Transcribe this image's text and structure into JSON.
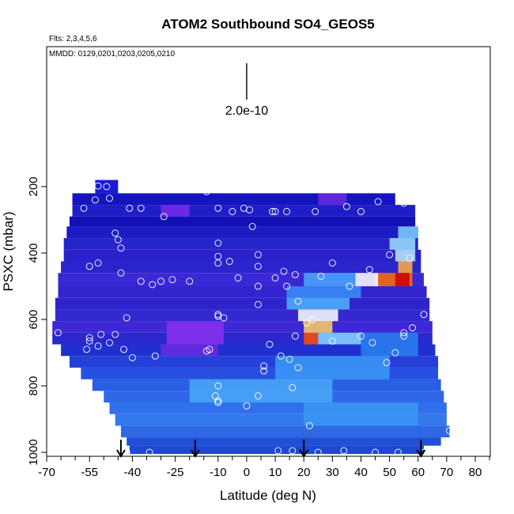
{
  "chart_data": {
    "type": "heatmap",
    "title": "ATOM2 Southbound SO4_GEOS5",
    "flights_note": "Flts: 2,3,4,5,6",
    "dates_note": "MMDD: 0129,0201,0203,0205,0210",
    "scale_label": "2.0e-10",
    "xlabel": "Latitude (deg N)",
    "ylabel": "PSXC (mbar)",
    "xlim": [
      -70,
      85
    ],
    "ylim": [
      1000,
      0
    ],
    "y_reversed": true,
    "x_tick_values": [
      -70,
      -55,
      -40,
      -25,
      -10,
      0,
      10,
      20,
      30,
      40,
      50,
      60,
      70,
      80
    ],
    "x_tick_labels": [
      "-70",
      "-55",
      "-40",
      "-25",
      "-10",
      "0",
      "10",
      "20",
      "30",
      "40",
      "50",
      "60",
      "70",
      "80"
    ],
    "x_minor_ticks": [
      -65,
      -60,
      -50,
      -45,
      -35,
      -30,
      -20,
      -15,
      -5,
      5,
      15,
      25,
      35,
      45,
      55,
      65,
      75,
      85
    ],
    "y_tick_values": [
      200,
      400,
      600,
      800,
      1000
    ],
    "y_tick_labels": [
      "200",
      "400",
      "600",
      "800",
      "1000"
    ],
    "colormap": [
      "#00007a",
      "#1a1ac8",
      "#5a28dc",
      "#9b30f0",
      "#1e64f0",
      "#3ca0f8",
      "#8fd8ff",
      "#ffffff",
      "#ffe680",
      "#ff9900",
      "#e81e00",
      "#b40000"
    ],
    "layers": [
      {
        "p_top": 180,
        "p_bot": 220,
        "x_start": -53,
        "x_end": -45,
        "color": "#1a1ad2"
      },
      {
        "p_top": 220,
        "p_bot": 255,
        "x_start": -61,
        "x_end": 52,
        "color": "#1414c0"
      },
      {
        "p_top": 255,
        "p_bot": 290,
        "x_start": -61,
        "x_end": 59,
        "color": "#1e1ec8"
      },
      {
        "p_top": 290,
        "p_bot": 320,
        "x_start": -62,
        "x_end": 59,
        "color": "#1010b4"
      },
      {
        "p_top": 320,
        "p_bot": 355,
        "x_start": -63,
        "x_end": 60,
        "color": "#1c1cc4"
      },
      {
        "p_top": 355,
        "p_bot": 390,
        "x_start": -64,
        "x_end": 60,
        "color": "#2424c8"
      },
      {
        "p_top": 390,
        "p_bot": 425,
        "x_start": -64,
        "x_end": 61,
        "color": "#2a20cc"
      },
      {
        "p_top": 425,
        "p_bot": 460,
        "x_start": -65,
        "x_end": 61,
        "color": "#2a24cc"
      },
      {
        "p_top": 460,
        "p_bot": 500,
        "x_start": -66,
        "x_end": 62,
        "color": "#3a28d4"
      },
      {
        "p_top": 500,
        "p_bot": 535,
        "x_start": -66,
        "x_end": 63,
        "color": "#3424d0"
      },
      {
        "p_top": 535,
        "p_bot": 570,
        "x_start": -67,
        "x_end": 64,
        "color": "#2e24cc"
      },
      {
        "p_top": 570,
        "p_bot": 605,
        "x_start": -67,
        "x_end": 64,
        "color": "#3428d0"
      },
      {
        "p_top": 605,
        "p_bot": 640,
        "x_start": -68,
        "x_end": 65,
        "color": "#3c28d4"
      },
      {
        "p_top": 640,
        "p_bot": 675,
        "x_start": -68,
        "x_end": 65,
        "color": "#2a28cc"
      },
      {
        "p_top": 675,
        "p_bot": 710,
        "x_start": -65,
        "x_end": 66,
        "color": "#2030d0"
      },
      {
        "p_top": 710,
        "p_bot": 745,
        "x_start": -62,
        "x_end": 67,
        "color": "#2440d8"
      },
      {
        "p_top": 745,
        "p_bot": 780,
        "x_start": -58,
        "x_end": 67,
        "color": "#2850e0"
      },
      {
        "p_top": 780,
        "p_bot": 815,
        "x_start": -54,
        "x_end": 68,
        "color": "#2a5ee4"
      },
      {
        "p_top": 815,
        "p_bot": 850,
        "x_start": -50,
        "x_end": 69,
        "color": "#2e68e8"
      },
      {
        "p_top": 850,
        "p_bot": 885,
        "x_start": -48,
        "x_end": 70,
        "color": "#3070ec"
      },
      {
        "p_top": 885,
        "p_bot": 920,
        "x_start": -46,
        "x_end": 70,
        "color": "#3478ee"
      },
      {
        "p_top": 920,
        "p_bot": 955,
        "x_start": -44,
        "x_end": 71,
        "color": "#2e68e4"
      },
      {
        "p_top": 955,
        "p_bot": 980,
        "x_start": -42,
        "x_end": 68,
        "color": "#2050d8"
      },
      {
        "p_top": 980,
        "p_bot": 1005,
        "x_start": -41,
        "x_end": 62,
        "color": "#1e48d0"
      }
    ],
    "hotspots": [
      {
        "p_top": 320,
        "p_bot": 355,
        "x_start": 53,
        "x_end": 60,
        "color": "#7fd0ff"
      },
      {
        "p_top": 355,
        "p_bot": 390,
        "x_start": 50,
        "x_end": 59,
        "color": "#9fe0ff"
      },
      {
        "p_top": 390,
        "p_bot": 425,
        "x_start": 52,
        "x_end": 59,
        "color": "#bfeaff"
      },
      {
        "p_top": 425,
        "p_bot": 460,
        "x_start": 53,
        "x_end": 58,
        "color": "#ffb040"
      },
      {
        "p_top": 460,
        "p_bot": 500,
        "x_start": 45,
        "x_end": 58,
        "color": "#ff7000"
      },
      {
        "p_top": 460,
        "p_bot": 500,
        "x_start": 52,
        "x_end": 57,
        "color": "#cc0000"
      },
      {
        "p_top": 460,
        "p_bot": 500,
        "x_start": 38,
        "x_end": 46,
        "color": "#ffffff"
      },
      {
        "p_top": 460,
        "p_bot": 500,
        "x_start": 20,
        "x_end": 38,
        "color": "#4aa8ff"
      },
      {
        "p_top": 500,
        "p_bot": 535,
        "x_start": 14,
        "x_end": 40,
        "color": "#3a90f8"
      },
      {
        "p_top": 535,
        "p_bot": 570,
        "x_start": 14,
        "x_end": 36,
        "color": "#50b4ff"
      },
      {
        "p_top": 570,
        "p_bot": 605,
        "x_start": 18,
        "x_end": 32,
        "color": "#ffffff"
      },
      {
        "p_top": 605,
        "p_bot": 640,
        "x_start": 20,
        "x_end": 30,
        "color": "#ffd060"
      },
      {
        "p_top": 640,
        "p_bot": 675,
        "x_start": 20,
        "x_end": 25,
        "color": "#ff5000"
      },
      {
        "p_top": 640,
        "p_bot": 675,
        "x_start": 25,
        "x_end": 40,
        "color": "#8ad8ff"
      },
      {
        "p_top": 605,
        "p_bot": 675,
        "x_start": -28,
        "x_end": -8,
        "color": "#8a30ee"
      },
      {
        "p_top": 675,
        "p_bot": 710,
        "x_start": -30,
        "x_end": -10,
        "color": "#6a2ae0"
      },
      {
        "p_top": 640,
        "p_bot": 710,
        "x_start": 40,
        "x_end": 60,
        "color": "#2a80f0"
      },
      {
        "p_top": 710,
        "p_bot": 780,
        "x_start": 10,
        "x_end": 50,
        "color": "#3a9af6"
      },
      {
        "p_top": 780,
        "p_bot": 850,
        "x_start": -20,
        "x_end": 30,
        "color": "#4aa8f8"
      },
      {
        "p_top": 850,
        "p_bot": 920,
        "x_start": 20,
        "x_end": 60,
        "color": "#3a98f4"
      },
      {
        "p_top": 255,
        "p_bot": 290,
        "x_start": -30,
        "x_end": -20,
        "color": "#7a2ae6"
      },
      {
        "p_top": 220,
        "p_bot": 255,
        "x_start": 25,
        "x_end": 35,
        "color": "#6a28e0"
      }
    ],
    "points": [
      {
        "x": -55,
        "p": 195
      },
      {
        "x": -52,
        "p": 198
      },
      {
        "x": -49,
        "p": 200
      },
      {
        "x": -57,
        "p": 265
      },
      {
        "x": -53,
        "p": 240
      },
      {
        "x": -48,
        "p": 235
      },
      {
        "x": -41,
        "p": 265
      },
      {
        "x": -37,
        "p": 265
      },
      {
        "x": -29,
        "p": 290
      },
      {
        "x": -14,
        "p": 215
      },
      {
        "x": -10,
        "p": 265
      },
      {
        "x": -5,
        "p": 275
      },
      {
        "x": -1,
        "p": 265
      },
      {
        "x": 1,
        "p": 270
      },
      {
        "x": 2,
        "p": 320
      },
      {
        "x": 9,
        "p": 275
      },
      {
        "x": 10,
        "p": 275
      },
      {
        "x": 14,
        "p": 275
      },
      {
        "x": 24,
        "p": 275
      },
      {
        "x": 35,
        "p": 260
      },
      {
        "x": 40,
        "p": 275
      },
      {
        "x": 46,
        "p": 245
      },
      {
        "x": 55,
        "p": 250
      },
      {
        "x": -46,
        "p": 340
      },
      {
        "x": -44,
        "p": 385
      },
      {
        "x": -45,
        "p": 360
      },
      {
        "x": -52,
        "p": 430
      },
      {
        "x": -55,
        "p": 440
      },
      {
        "x": -44,
        "p": 460
      },
      {
        "x": -37,
        "p": 485
      },
      {
        "x": -33,
        "p": 495
      },
      {
        "x": -30,
        "p": 485
      },
      {
        "x": -26,
        "p": 480
      },
      {
        "x": -20,
        "p": 485
      },
      {
        "x": -10,
        "p": 430
      },
      {
        "x": -10,
        "p": 410
      },
      {
        "x": -10,
        "p": 370
      },
      {
        "x": -6,
        "p": 425
      },
      {
        "x": -3,
        "p": 475
      },
      {
        "x": 4,
        "p": 440
      },
      {
        "x": 4,
        "p": 405
      },
      {
        "x": 10,
        "p": 475
      },
      {
        "x": 13,
        "p": 455
      },
      {
        "x": 17,
        "p": 465
      },
      {
        "x": 26,
        "p": 470
      },
      {
        "x": 30,
        "p": 430
      },
      {
        "x": 36,
        "p": 500
      },
      {
        "x": 43,
        "p": 450
      },
      {
        "x": 50,
        "p": 405
      },
      {
        "x": 57,
        "p": 415
      },
      {
        "x": -66,
        "p": 640
      },
      {
        "x": -55,
        "p": 655
      },
      {
        "x": -51,
        "p": 645
      },
      {
        "x": -48,
        "p": 670
      },
      {
        "x": -55,
        "p": 665
      },
      {
        "x": -52,
        "p": 680
      },
      {
        "x": -56,
        "p": 690
      },
      {
        "x": -46,
        "p": 645
      },
      {
        "x": -43,
        "p": 690
      },
      {
        "x": -42,
        "p": 595
      },
      {
        "x": -40,
        "p": 715
      },
      {
        "x": -32,
        "p": 710
      },
      {
        "x": -13,
        "p": 690
      },
      {
        "x": -14,
        "p": 695
      },
      {
        "x": -10,
        "p": 585
      },
      {
        "x": -10,
        "p": 590
      },
      {
        "x": -8,
        "p": 595
      },
      {
        "x": 4,
        "p": 555
      },
      {
        "x": 4,
        "p": 500
      },
      {
        "x": 14,
        "p": 500
      },
      {
        "x": 18,
        "p": 545
      },
      {
        "x": 21,
        "p": 610
      },
      {
        "x": 23,
        "p": 600
      },
      {
        "x": 17,
        "p": 650
      },
      {
        "x": 8,
        "p": 675
      },
      {
        "x": 6,
        "p": 740
      },
      {
        "x": 12,
        "p": 710
      },
      {
        "x": 15,
        "p": 720
      },
      {
        "x": 30,
        "p": 665
      },
      {
        "x": 40,
        "p": 650
      },
      {
        "x": 44,
        "p": 670
      },
      {
        "x": 55,
        "p": 650
      },
      {
        "x": 55,
        "p": 640
      },
      {
        "x": 52,
        "p": 700
      },
      {
        "x": 49,
        "p": 730
      },
      {
        "x": 18,
        "p": 745
      },
      {
        "x": 6,
        "p": 755
      },
      {
        "x": 62,
        "p": 585
      },
      {
        "x": 58,
        "p": 625
      },
      {
        "x": -10,
        "p": 800
      },
      {
        "x": -11,
        "p": 830
      },
      {
        "x": 4,
        "p": 830
      },
      {
        "x": 16,
        "p": 805
      },
      {
        "x": -10,
        "p": 845
      },
      {
        "x": -10,
        "p": 850
      },
      {
        "x": 0,
        "p": 860
      },
      {
        "x": 22,
        "p": 920
      },
      {
        "x": 71,
        "p": 935
      },
      {
        "x": -42,
        "p": 1000
      },
      {
        "x": -34,
        "p": 1000
      },
      {
        "x": 11,
        "p": 995
      },
      {
        "x": 16,
        "p": 995
      },
      {
        "x": 25,
        "p": 1000
      },
      {
        "x": 34,
        "p": 995
      },
      {
        "x": 45,
        "p": 1000
      },
      {
        "x": 53,
        "p": 1000
      },
      {
        "x": 62,
        "p": 1000
      }
    ],
    "arrows_x": [
      -44,
      -18,
      20,
      61
    ],
    "scale_bar_x": 0
  }
}
